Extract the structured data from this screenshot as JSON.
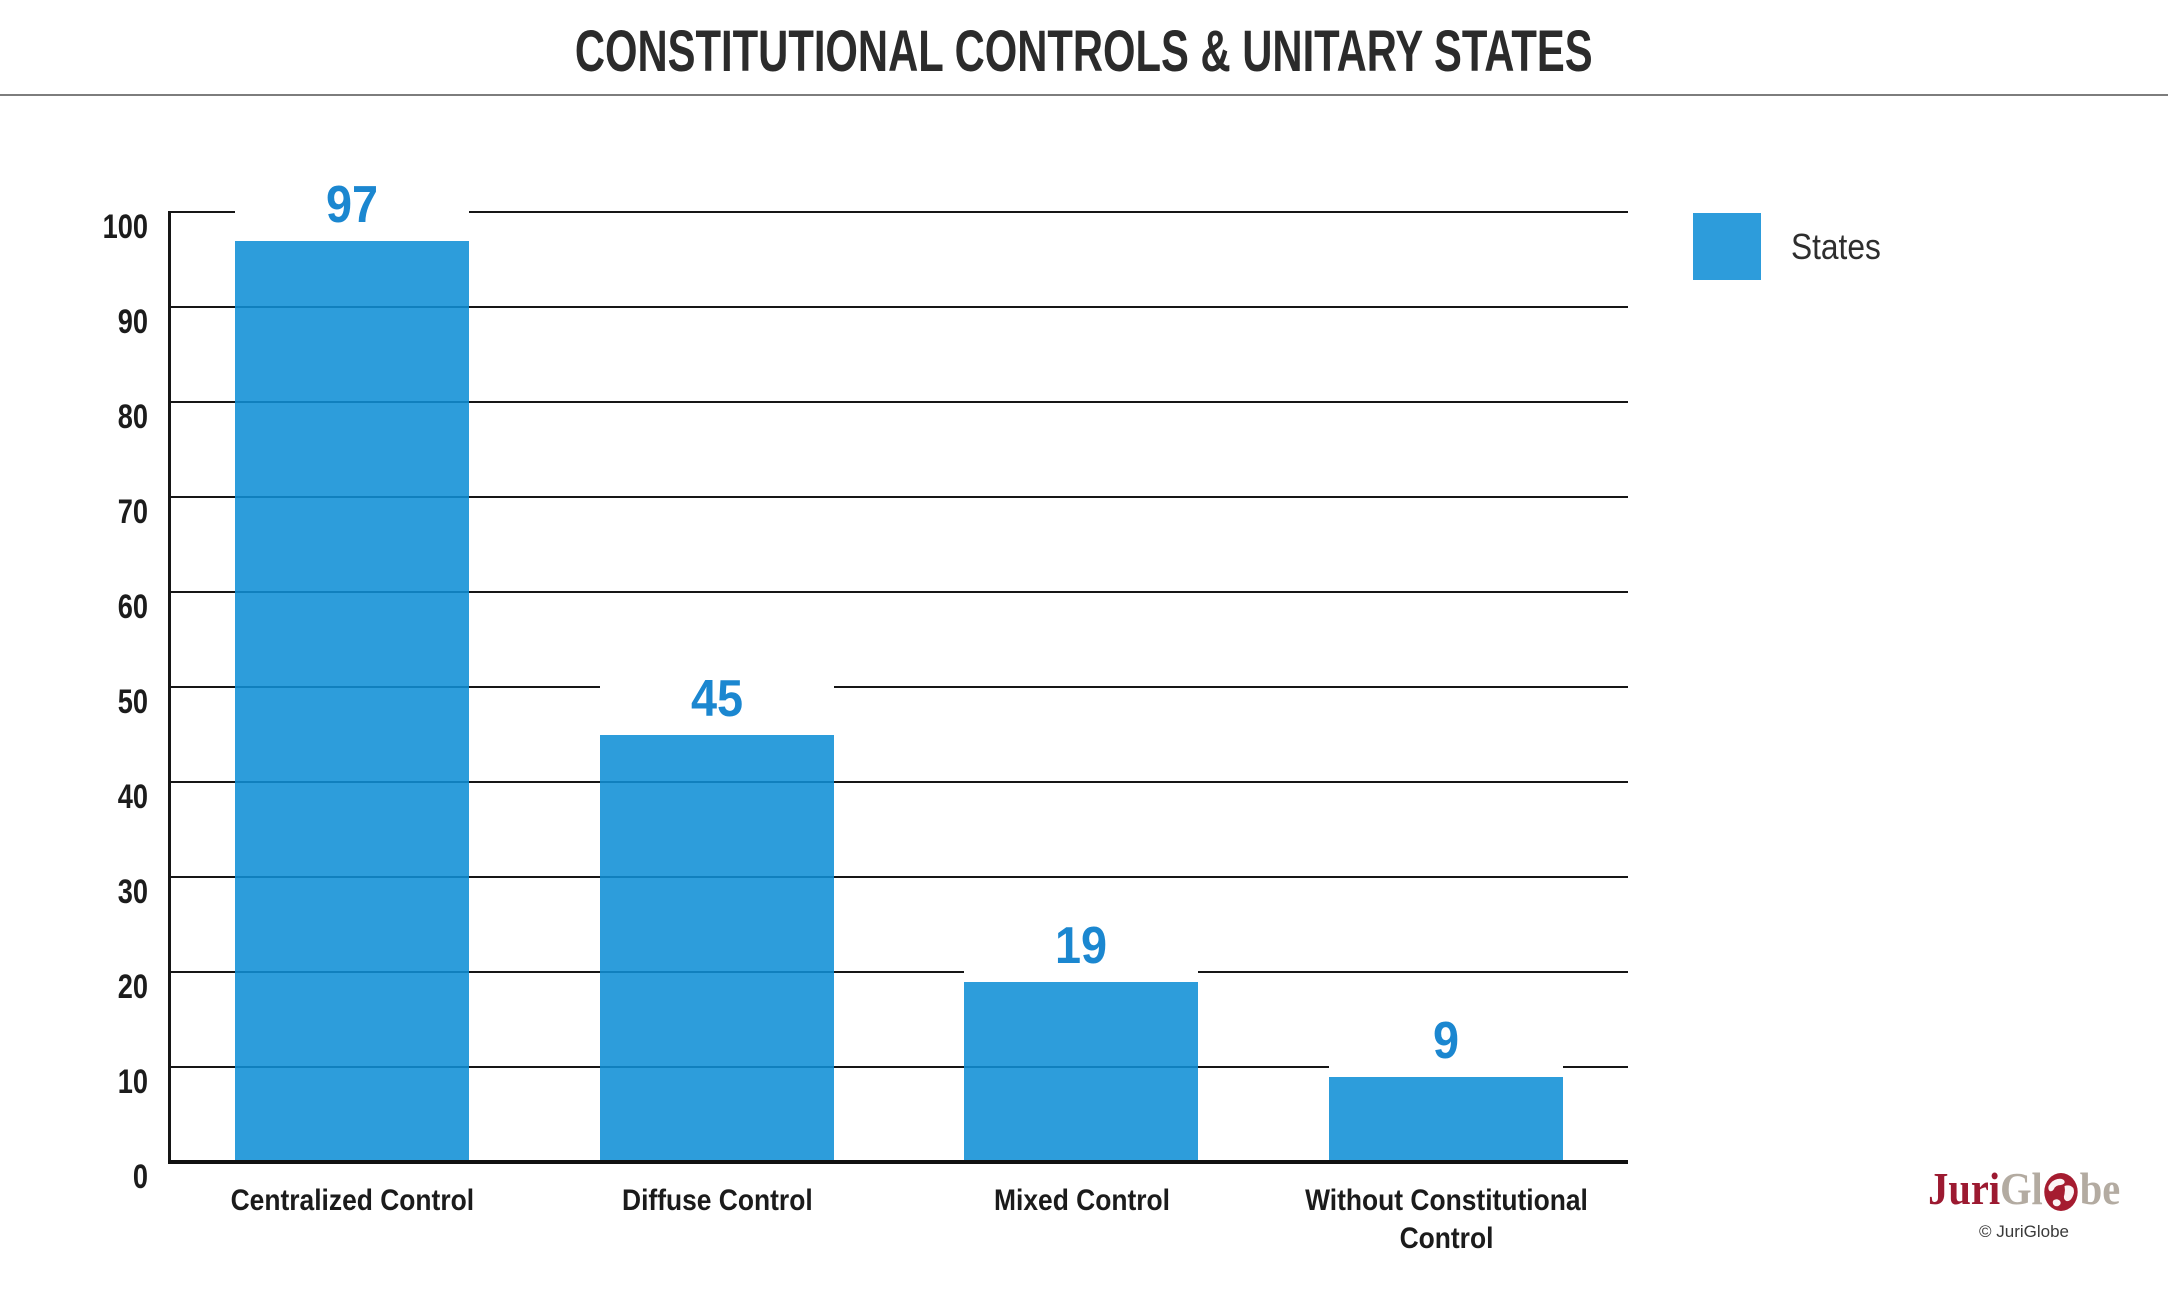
{
  "title": "CONSTITUTIONAL CONTROLS & UNITARY STATES",
  "chart_data": {
    "type": "bar",
    "title": "CONSTITUTIONAL CONTROLS & UNITARY STATES",
    "categories": [
      "Centralized Control",
      "Diffuse Control",
      "Mixed Control",
      "Without Constitutional Control"
    ],
    "values": [
      97,
      45,
      19,
      9
    ],
    "series_label": "States",
    "xlabel": "",
    "ylabel": "",
    "ylim": [
      0,
      100
    ],
    "yticks": [
      0,
      10,
      20,
      30,
      40,
      50,
      60,
      70,
      80,
      90,
      100
    ],
    "grid": true,
    "legend_position": "top-right",
    "bar_color": "#2D9CDB",
    "bar_fill_rgba": "rgba(16,143,214,0.88)",
    "value_label_color": "#1B87D0",
    "gridline_color": "#161616",
    "axis_color": "#111111",
    "tick_label_color": "#1C1C1C"
  },
  "legend": {
    "label": "States",
    "swatch_color": "#2D9CDB"
  },
  "footer_logo": {
    "part_juri": "Juri",
    "part_gl": "Gl",
    "part_be": "be",
    "globe_icon_color": "#A51C30",
    "juri_color": "#9C1A31",
    "gray_color": "#B3ABA1",
    "copyright": "© JuriGlobe"
  }
}
